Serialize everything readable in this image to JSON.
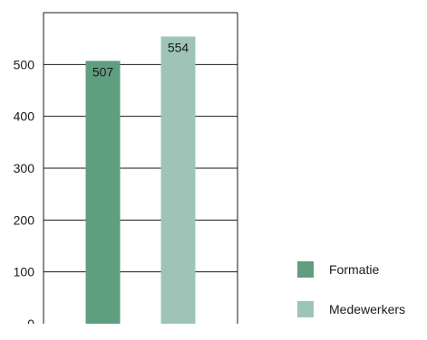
{
  "chart_data": {
    "type": "bar",
    "categories": [
      "Formatie",
      "Medewerkers"
    ],
    "values": [
      507,
      554
    ],
    "series": [
      {
        "name": "Formatie",
        "value": 507,
        "color": "#5f9e7f"
      },
      {
        "name": "Medewerkers",
        "value": 554,
        "color": "#9ec4b8"
      }
    ],
    "ylim": [
      0,
      600
    ],
    "yticks": [
      0,
      100,
      200,
      300,
      400,
      500
    ],
    "data_labels": [
      "507",
      "554"
    ],
    "grid": true,
    "legend_position": "bottom-right"
  },
  "legend": {
    "items": [
      {
        "label": "Formatie",
        "color": "#5f9e7f"
      },
      {
        "label": "Medewerkers",
        "color": "#9ec4b8"
      }
    ]
  },
  "colors": {
    "frame": "#1a1a1a",
    "grid": "#1a1a1a"
  }
}
